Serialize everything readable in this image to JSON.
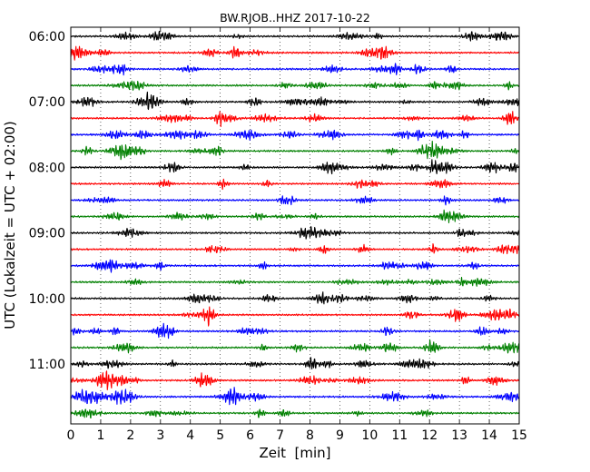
{
  "chart_data": {
    "type": "line",
    "title": "BW.RJOB..HHZ 2017-10-22",
    "xlabel": "Zeit  [min]",
    "ylabel": "UTC (Lokalzeit = UTC + 02:00)",
    "xlim": [
      0,
      15
    ],
    "x_ticks": [
      "0",
      "1",
      "2",
      "3",
      "4",
      "5",
      "6",
      "7",
      "8",
      "9",
      "10",
      "11",
      "12",
      "13",
      "14",
      "15"
    ],
    "y_ticks": [
      "06:00",
      "07:00",
      "08:00",
      "09:00",
      "10:00",
      "11:00"
    ],
    "grid": "vertical dotted, every minute",
    "trace_start_hours": [
      6.0,
      6.25,
      6.5,
      6.75,
      7.0,
      7.25,
      7.5,
      7.75,
      8.0,
      8.25,
      8.5,
      8.75,
      9.0,
      9.25,
      9.5,
      9.75,
      10.0,
      10.25,
      10.5,
      10.75,
      11.0,
      11.25,
      11.5,
      11.75
    ],
    "colors": [
      "#000000",
      "#ff0000",
      "#0000ff",
      "#008000"
    ]
  }
}
